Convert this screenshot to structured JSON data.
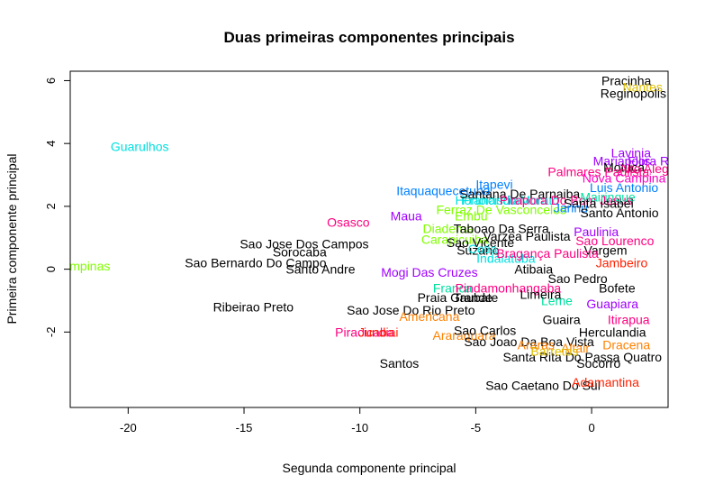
{
  "chart_data": {
    "type": "scatter",
    "title": "Duas primeiras componentes principais",
    "xlabel": "Segunda componente principal",
    "ylabel": "Primeira componente principal",
    "xlim": [
      -22.5,
      3.3
    ],
    "ylim": [
      -4.4,
      6.3
    ],
    "x_ticks": [
      -20,
      -15,
      -10,
      -5,
      0
    ],
    "y_ticks": [
      -2,
      0,
      2,
      4,
      6
    ],
    "grid": false,
    "legend": "none",
    "points": [
      {
        "label": "Campinas",
        "x": -22.0,
        "y": 0.1,
        "color": "#80ff00"
      },
      {
        "label": "Guarulhos",
        "x": -19.5,
        "y": 3.9,
        "color": "#00e0e0"
      },
      {
        "label": "Sao Bernardo Do Campo",
        "x": -14.5,
        "y": 0.2,
        "color": "#000000"
      },
      {
        "label": "Sao Jose Dos Campos",
        "x": -12.4,
        "y": 0.8,
        "color": "#000000"
      },
      {
        "label": "Sorocaba",
        "x": -12.6,
        "y": 0.55,
        "color": "#000000"
      },
      {
        "label": "Santo Andre",
        "x": -11.7,
        "y": 0.0,
        "color": "#000000"
      },
      {
        "label": "Osasco",
        "x": -10.5,
        "y": 1.5,
        "color": "#ff0080"
      },
      {
        "label": "Ribeirao Preto",
        "x": -14.6,
        "y": -1.2,
        "color": "#000000"
      },
      {
        "label": "Maua",
        "x": -8.0,
        "y": 1.7,
        "color": "#a000ff"
      },
      {
        "label": "Itaquaquecetuba",
        "x": -6.4,
        "y": 2.5,
        "color": "#0080ff"
      },
      {
        "label": "Itapevi",
        "x": -4.2,
        "y": 2.7,
        "color": "#0080ff"
      },
      {
        "label": "Mogi Das Cruzes",
        "x": -7.0,
        "y": -0.1,
        "color": "#a000ff"
      },
      {
        "label": "Sao Jose Do Rio Preto",
        "x": -7.8,
        "y": -1.3,
        "color": "#000000"
      },
      {
        "label": "Piracicaba",
        "x": -9.8,
        "y": -2.0,
        "color": "#ff0080"
      },
      {
        "label": "Jundiai",
        "x": -9.2,
        "y": -2.0,
        "color": "#ff2000"
      },
      {
        "label": "Americana",
        "x": -7.0,
        "y": -1.5,
        "color": "#ff8000"
      },
      {
        "label": "Araraquara",
        "x": -5.5,
        "y": -2.1,
        "color": "#ff8000"
      },
      {
        "label": "Santos",
        "x": -8.3,
        "y": -3.0,
        "color": "#000000"
      },
      {
        "label": "Sao Caetano Do Sul",
        "x": -2.1,
        "y": -3.7,
        "color": "#000000"
      },
      {
        "label": "Diadema",
        "x": -6.2,
        "y": 1.3,
        "color": "#80ff00"
      },
      {
        "label": "Carapicuiba",
        "x": -5.9,
        "y": 0.95,
        "color": "#80ff00"
      },
      {
        "label": "Hortolandia",
        "x": -4.5,
        "y": 2.2,
        "color": "#00e0e0"
      },
      {
        "label": "Francisco Morato",
        "x": -3.5,
        "y": 2.2,
        "color": "#00e0e0"
      },
      {
        "label": "Embu",
        "x": -5.2,
        "y": 1.7,
        "color": "#80ff00"
      },
      {
        "label": "Ferraz De Vasconcelos",
        "x": -3.9,
        "y": 1.9,
        "color": "#80ff00"
      },
      {
        "label": "Santana De Parnaiba",
        "x": -3.1,
        "y": 2.4,
        "color": "#000000"
      },
      {
        "label": "Taboao Da Serra",
        "x": -3.9,
        "y": 1.3,
        "color": "#000000"
      },
      {
        "label": "Sao Vicente",
        "x": -4.8,
        "y": 0.85,
        "color": "#000000"
      },
      {
        "label": "Suzano",
        "x": -4.9,
        "y": 0.6,
        "color": "#000000"
      },
      {
        "label": "Cotia",
        "x": -4.7,
        "y": 0.65,
        "color": "#00e0e0"
      },
      {
        "label": "Indaiatuba",
        "x": -3.7,
        "y": 0.35,
        "color": "#00e0e0"
      },
      {
        "label": "Varzea Paulista",
        "x": -2.8,
        "y": 1.05,
        "color": "#000000"
      },
      {
        "label": "Franca",
        "x": -6.0,
        "y": -0.6,
        "color": "#00e0a0"
      },
      {
        "label": "Pindamonhangaba",
        "x": -3.6,
        "y": -0.6,
        "color": "#ff0080"
      },
      {
        "label": "Praia Grande",
        "x": -5.9,
        "y": -0.9,
        "color": "#000000"
      },
      {
        "label": "Taubate",
        "x": -5.0,
        "y": -0.9,
        "color": "#000000"
      },
      {
        "label": "Sao Carlos",
        "x": -4.6,
        "y": -1.95,
        "color": "#000000"
      },
      {
        "label": "Sao Joao Da Boa Vista",
        "x": -2.7,
        "y": -2.3,
        "color": "#000000"
      },
      {
        "label": "Santa Rita Do Passa Quatro",
        "x": -0.4,
        "y": -2.8,
        "color": "#000000"
      },
      {
        "label": "Socorro",
        "x": 0.3,
        "y": -3.0,
        "color": "#000000"
      },
      {
        "label": "Adamantina",
        "x": 0.6,
        "y": -3.6,
        "color": "#ff2000"
      },
      {
        "label": "Pracinha",
        "x": 1.5,
        "y": 6.0,
        "color": "#000000"
      },
      {
        "label": "Nantes",
        "x": 2.2,
        "y": 5.8,
        "color": "#e0c000"
      },
      {
        "label": "Reginopolis",
        "x": 1.8,
        "y": 5.6,
        "color": "#000000"
      },
      {
        "label": "Lavinia",
        "x": 1.7,
        "y": 3.7,
        "color": "#a000ff"
      },
      {
        "label": "Mariapolis",
        "x": 1.3,
        "y": 3.45,
        "color": "#a000ff"
      },
      {
        "label": "Flora Rica",
        "x": 2.8,
        "y": 3.45,
        "color": "#a000ff"
      },
      {
        "label": "Motuca",
        "x": 1.4,
        "y": 3.25,
        "color": "#000000"
      },
      {
        "label": "Alto Alegre",
        "x": 2.5,
        "y": 3.2,
        "color": "#ff0080"
      },
      {
        "label": "Palmares Paulista",
        "x": 0.3,
        "y": 3.1,
        "color": "#ff0080"
      },
      {
        "label": "Nova Campina",
        "x": 1.4,
        "y": 2.9,
        "color": "#ff00c0"
      },
      {
        "label": "Luis Antonio",
        "x": 1.4,
        "y": 2.6,
        "color": "#0080ff"
      },
      {
        "label": "Pirapora Do Bom Jesus",
        "x": -1.1,
        "y": 2.2,
        "color": "#ff0080"
      },
      {
        "label": "Santa Isabel",
        "x": 0.3,
        "y": 2.1,
        "color": "#000000"
      },
      {
        "label": "Jarinu",
        "x": -0.9,
        "y": 1.95,
        "color": "#0080ff"
      },
      {
        "label": "Mairinque",
        "x": 0.7,
        "y": 2.3,
        "color": "#00e0a0"
      },
      {
        "label": "Santo Antonio",
        "x": 1.2,
        "y": 1.8,
        "color": "#000000"
      },
      {
        "label": "Paulinia",
        "x": 0.2,
        "y": 1.2,
        "color": "#a000ff"
      },
      {
        "label": "Sao Lourenco",
        "x": 1.0,
        "y": 0.9,
        "color": "#ff0080"
      },
      {
        "label": "Vargem",
        "x": 0.6,
        "y": 0.6,
        "color": "#000000"
      },
      {
        "label": "Jambeiro",
        "x": 1.3,
        "y": 0.2,
        "color": "#ff2000"
      },
      {
        "label": "Sao Pedro",
        "x": -0.6,
        "y": -0.3,
        "color": "#000000"
      },
      {
        "label": "Bofete",
        "x": 1.1,
        "y": -0.6,
        "color": "#000000"
      },
      {
        "label": "Guapiara",
        "x": 0.9,
        "y": -1.1,
        "color": "#a000ff"
      },
      {
        "label": "Itirapua",
        "x": 1.6,
        "y": -1.6,
        "color": "#ff0080"
      },
      {
        "label": "Herculandia",
        "x": 0.9,
        "y": -2.0,
        "color": "#000000"
      },
      {
        "label": "Altair",
        "x": -0.7,
        "y": -2.5,
        "color": "#ff8000"
      },
      {
        "label": "Dracena",
        "x": 1.5,
        "y": -2.4,
        "color": "#ff8000"
      },
      {
        "label": "Barretos",
        "x": -1.6,
        "y": -2.6,
        "color": "#e0c000"
      },
      {
        "label": "Araras",
        "x": -2.4,
        "y": -2.4,
        "color": "#ff8000"
      },
      {
        "label": "Guaira",
        "x": -1.3,
        "y": -1.6,
        "color": "#000000"
      },
      {
        "label": "Leme",
        "x": -1.5,
        "y": -1.0,
        "color": "#00e0a0"
      },
      {
        "label": "Limeira",
        "x": -2.2,
        "y": -0.8,
        "color": "#000000"
      },
      {
        "label": "Atibaia",
        "x": -2.5,
        "y": 0.0,
        "color": "#000000"
      },
      {
        "label": "Bragança Paulista",
        "x": -1.9,
        "y": 0.5,
        "color": "#ff0080"
      }
    ]
  }
}
